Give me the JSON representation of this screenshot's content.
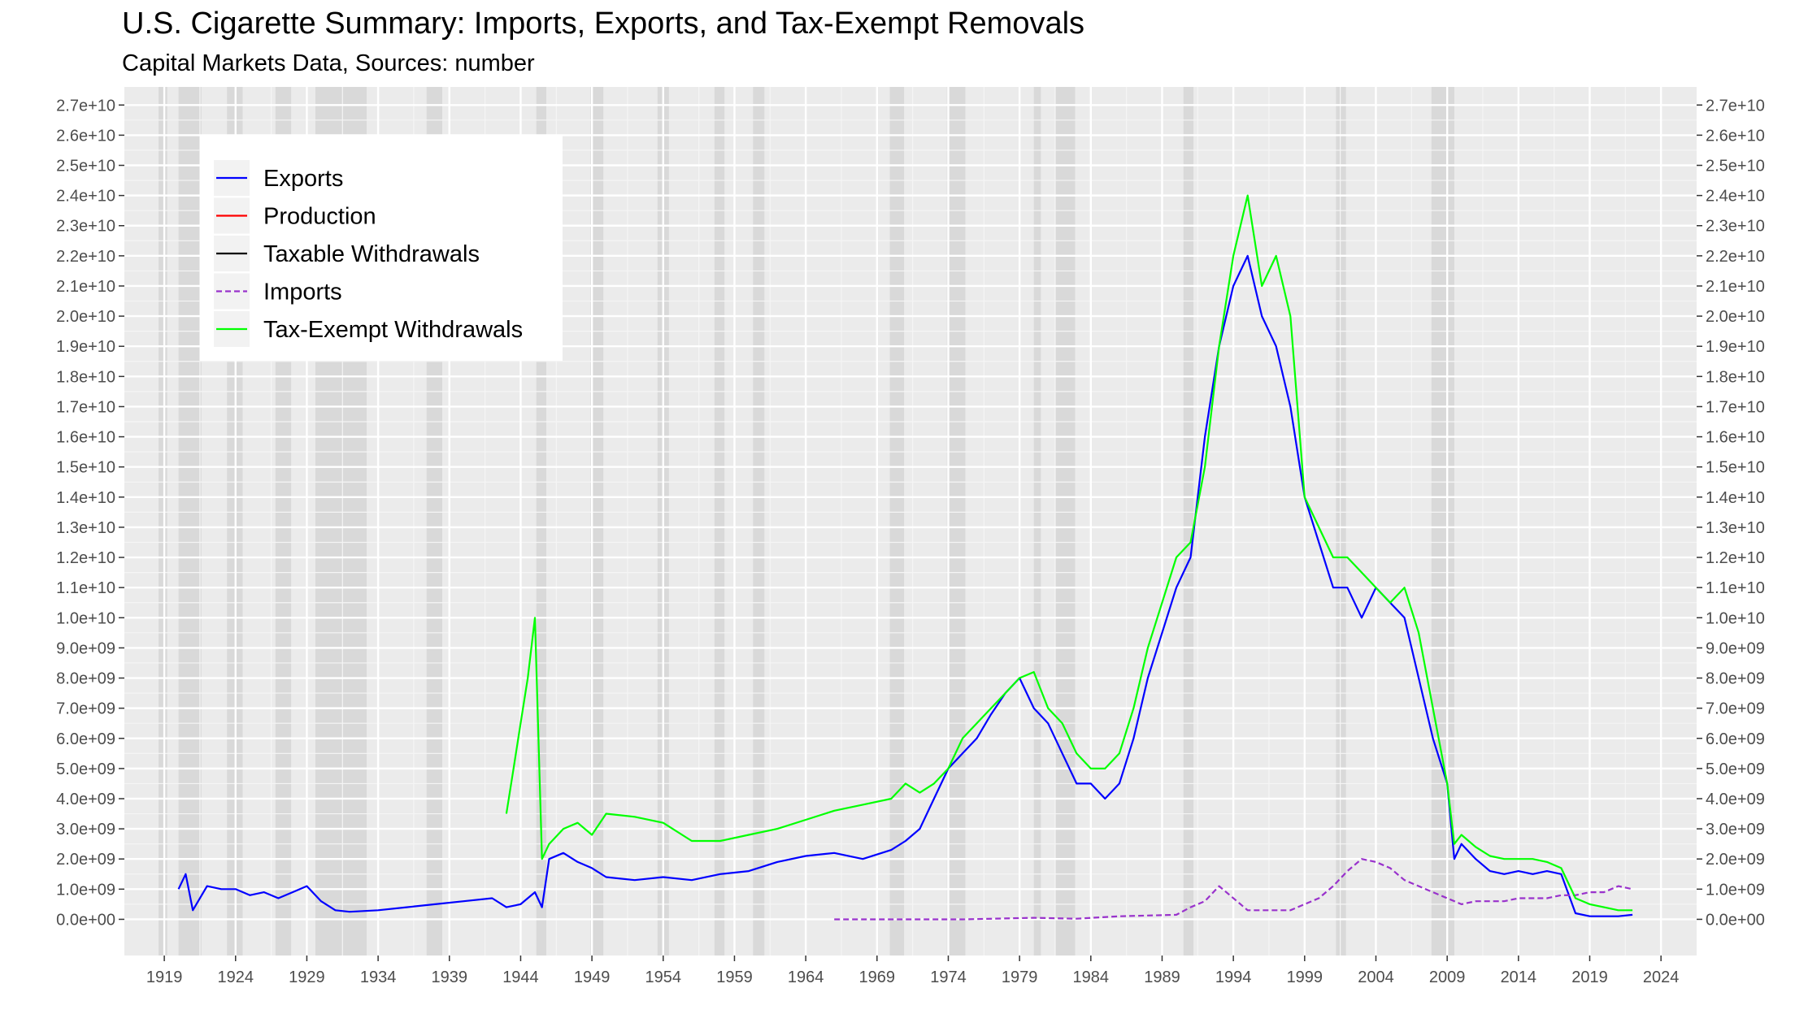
{
  "chart_data": {
    "type": "line",
    "title": "U.S. Cigarette Summary: Imports, Exports, and Tax-Exempt Removals",
    "subtitle": "Capital Markets Data, Sources: number",
    "xlabel": "",
    "ylabel": "",
    "xlim": [
      1916.2,
      2026.5
    ],
    "ylim": [
      -1200000000.0,
      27600000000.0
    ],
    "x_ticks": [
      1919,
      1924,
      1929,
      1934,
      1939,
      1944,
      1949,
      1954,
      1959,
      1964,
      1969,
      1974,
      1979,
      1984,
      1989,
      1994,
      1999,
      2004,
      2009,
      2014,
      2019,
      2024
    ],
    "y_ticks": [
      0,
      1000000000.0,
      2000000000.0,
      3000000000.0,
      4000000000.0,
      5000000000.0,
      6000000000.0,
      7000000000.0,
      8000000000.0,
      9000000000.0,
      10000000000.0,
      11000000000.0,
      12000000000.0,
      13000000000.0,
      14000000000.0,
      15000000000.0,
      16000000000.0,
      17000000000.0,
      18000000000.0,
      19000000000.0,
      20000000000.0,
      21000000000.0,
      22000000000.0,
      23000000000.0,
      24000000000.0,
      25000000000.0,
      26000000000.0,
      27000000000.0
    ],
    "y_tick_labels": [
      "0.0e+00",
      "1.0e+09",
      "2.0e+09",
      "3.0e+09",
      "4.0e+09",
      "5.0e+09",
      "6.0e+09",
      "7.0e+09",
      "8.0e+09",
      "9.0e+09",
      "1.0e+10",
      "1.1e+10",
      "1.2e+10",
      "1.3e+10",
      "1.4e+10",
      "1.5e+10",
      "1.6e+10",
      "1.7e+10",
      "1.8e+10",
      "1.9e+10",
      "2.0e+10",
      "2.1e+10",
      "2.2e+10",
      "2.3e+10",
      "2.4e+10",
      "2.5e+10",
      "2.6e+10",
      "2.7e+10"
    ],
    "secondary_y_axis": true,
    "grid": true,
    "legend_position": "top-left",
    "recession_shading": [
      [
        1918.6,
        1919.2
      ],
      [
        1920.0,
        1921.6
      ],
      [
        1923.4,
        1924.5
      ],
      [
        1926.8,
        1927.9
      ],
      [
        1929.6,
        1933.2
      ],
      [
        1937.4,
        1938.5
      ],
      [
        1945.1,
        1945.8
      ],
      [
        1948.9,
        1949.8
      ],
      [
        1953.6,
        1954.4
      ],
      [
        1957.6,
        1958.3
      ],
      [
        1960.3,
        1961.1
      ],
      [
        1969.9,
        1970.9
      ],
      [
        1973.9,
        1975.2
      ],
      [
        1980.0,
        1980.5
      ],
      [
        1981.5,
        1982.9
      ],
      [
        1990.5,
        1991.2
      ],
      [
        2001.2,
        2001.9
      ],
      [
        2007.9,
        2009.5
      ]
    ],
    "series": [
      {
        "name": "Exports",
        "color": "#0000ff",
        "dash": "solid",
        "x": [
          1920.0,
          1920.5,
          1921.0,
          1922.0,
          1923.0,
          1924.0,
          1925.0,
          1926.0,
          1927.0,
          1928.0,
          1929.0,
          1930.0,
          1931.0,
          1932.0,
          1934.0,
          1936.0,
          1938.0,
          1940.0,
          1942.0,
          1943.0,
          1944.0,
          1945.0,
          1945.5,
          1946.0,
          1947.0,
          1948.0,
          1949.0,
          1950.0,
          1952.0,
          1954.0,
          1956.0,
          1958.0,
          1960.0,
          1962.0,
          1964.0,
          1966.0,
          1968.0,
          1970.0,
          1971.0,
          1972.0,
          1973.0,
          1974.0,
          1975.0,
          1976.0,
          1977.0,
          1978.0,
          1979.0,
          1980.0,
          1981.0,
          1982.0,
          1983.0,
          1984.0,
          1985.0,
          1986.0,
          1987.0,
          1988.0,
          1989.0,
          1990.0,
          1991.0,
          1992.0,
          1993.0,
          1994.0,
          1995.0,
          1996.0,
          1997.0,
          1998.0,
          1999.0,
          2000.0,
          2001.0,
          2002.0,
          2003.0,
          2004.0,
          2005.0,
          2006.0,
          2007.0,
          2008.0,
          2009.0,
          2009.5,
          2010.0,
          2011.0,
          2012.0,
          2013.0,
          2014.0,
          2015.0,
          2016.0,
          2017.0,
          2018.0,
          2019.0,
          2020.0,
          2021.0,
          2022.0
        ],
        "y": [
          1000000000.0,
          1500000000.0,
          300000000.0,
          1100000000.0,
          1000000000.0,
          1000000000.0,
          800000000.0,
          900000000.0,
          700000000.0,
          900000000.0,
          1100000000.0,
          600000000.0,
          300000000.0,
          250000000.0,
          300000000.0,
          400000000.0,
          500000000.0,
          600000000.0,
          700000000.0,
          400000000.0,
          500000000.0,
          900000000.0,
          400000000.0,
          2000000000.0,
          2200000000.0,
          1900000000.0,
          1700000000.0,
          1400000000.0,
          1300000000.0,
          1400000000.0,
          1300000000.0,
          1500000000.0,
          1600000000.0,
          1900000000.0,
          2100000000.0,
          2200000000.0,
          2000000000.0,
          2300000000.0,
          2600000000.0,
          3000000000.0,
          4000000000.0,
          5000000000.0,
          5500000000.0,
          6000000000.0,
          6800000000.0,
          7500000000.0,
          8000000000.0,
          7000000000.0,
          6500000000.0,
          5500000000.0,
          4500000000.0,
          4500000000.0,
          4000000000.0,
          4500000000.0,
          6000000000.0,
          8000000000.0,
          9500000000.0,
          11000000000.0,
          12000000000.0,
          16000000000.0,
          19000000000.0,
          21000000000.0,
          22000000000.0,
          20000000000.0,
          19000000000.0,
          17000000000.0,
          14000000000.0,
          12500000000.0,
          11000000000.0,
          11000000000.0,
          10000000000.0,
          11000000000.0,
          10500000000.0,
          10000000000.0,
          8000000000.0,
          6000000000.0,
          4500000000.0,
          2000000000.0,
          2500000000.0,
          2000000000.0,
          1600000000.0,
          1500000000.0,
          1600000000.0,
          1500000000.0,
          1600000000.0,
          1500000000.0,
          200000000.0,
          100000000.0,
          100000000.0,
          100000000.0,
          150000000.0
        ]
      },
      {
        "name": "Production",
        "color": "#ff0000",
        "dash": "solid",
        "x": [],
        "y": []
      },
      {
        "name": "Taxable Withdrawals",
        "color": "#000000",
        "dash": "solid",
        "x": [],
        "y": []
      },
      {
        "name": "Imports",
        "color": "#9932cc",
        "dash": "dashed",
        "x": [
          1966.0,
          1970.0,
          1975.0,
          1980.0,
          1983.0,
          1986.0,
          1990.0,
          1991.0,
          1992.0,
          1993.0,
          1995.0,
          1998.0,
          2000.0,
          2001.0,
          2002.0,
          2003.0,
          2004.0,
          2005.0,
          2006.0,
          2007.0,
          2008.0,
          2009.0,
          2010.0,
          2011.0,
          2012.0,
          2013.0,
          2014.0,
          2015.0,
          2016.0,
          2017.0,
          2018.0,
          2019.0,
          2020.0,
          2021.0,
          2022.0
        ],
        "y": [
          0.0,
          0.0,
          0.0,
          50000000.0,
          20000000.0,
          100000000.0,
          150000000.0,
          400000000.0,
          600000000.0,
          1100000000.0,
          300000000.0,
          300000000.0,
          700000000.0,
          1100000000.0,
          1600000000.0,
          2000000000.0,
          1900000000.0,
          1700000000.0,
          1300000000.0,
          1100000000.0,
          900000000.0,
          700000000.0,
          500000000.0,
          600000000.0,
          600000000.0,
          600000000.0,
          700000000.0,
          700000000.0,
          700000000.0,
          800000000.0,
          800000000.0,
          900000000.0,
          900000000.0,
          1100000000.0,
          1000000000.0
        ]
      },
      {
        "name": "Tax-Exempt Withdrawals",
        "color": "#00ff00",
        "dash": "solid",
        "x": [
          1943.0,
          1943.5,
          1944.0,
          1944.5,
          1945.0,
          1945.5,
          1946.0,
          1947.0,
          1948.0,
          1949.0,
          1950.0,
          1952.0,
          1954.0,
          1956.0,
          1958.0,
          1960.0,
          1962.0,
          1964.0,
          1966.0,
          1968.0,
          1970.0,
          1971.0,
          1972.0,
          1973.0,
          1974.0,
          1975.0,
          1976.0,
          1977.0,
          1978.0,
          1979.0,
          1980.0,
          1981.0,
          1982.0,
          1983.0,
          1984.0,
          1985.0,
          1986.0,
          1987.0,
          1988.0,
          1989.0,
          1990.0,
          1991.0,
          1992.0,
          1993.0,
          1994.0,
          1995.0,
          1996.0,
          1997.0,
          1998.0,
          1999.0,
          2000.0,
          2001.0,
          2002.0,
          2003.0,
          2004.0,
          2005.0,
          2006.0,
          2007.0,
          2008.0,
          2009.0,
          2009.5,
          2010.0,
          2011.0,
          2012.0,
          2013.0,
          2014.0,
          2015.0,
          2016.0,
          2017.0,
          2018.0,
          2019.0,
          2020.0,
          2021.0,
          2022.0
        ],
        "y": [
          3500000000.0,
          5000000000.0,
          6500000000.0,
          8000000000.0,
          10000000000.0,
          2000000000.0,
          2500000000.0,
          3000000000.0,
          3200000000.0,
          2800000000.0,
          3500000000.0,
          3400000000.0,
          3200000000.0,
          2600000000.0,
          2600000000.0,
          2800000000.0,
          3000000000.0,
          3300000000.0,
          3600000000.0,
          3800000000.0,
          4000000000.0,
          4500000000.0,
          4200000000.0,
          4500000000.0,
          5000000000.0,
          6000000000.0,
          6500000000.0,
          7000000000.0,
          7500000000.0,
          8000000000.0,
          8200000000.0,
          7000000000.0,
          6500000000.0,
          5500000000.0,
          5000000000.0,
          5000000000.0,
          5500000000.0,
          7000000000.0,
          9000000000.0,
          10500000000.0,
          12000000000.0,
          12500000000.0,
          15000000000.0,
          19000000000.0,
          22000000000.0,
          24000000000.0,
          21000000000.0,
          22000000000.0,
          20000000000.0,
          14000000000.0,
          13000000000.0,
          12000000000.0,
          12000000000.0,
          11500000000.0,
          11000000000.0,
          10500000000.0,
          11000000000.0,
          9500000000.0,
          7000000000.0,
          4500000000.0,
          2500000000.0,
          2800000000.0,
          2400000000.0,
          2100000000.0,
          2000000000.0,
          2000000000.0,
          2000000000.0,
          1900000000.0,
          1700000000.0,
          700000000.0,
          500000000.0,
          400000000.0,
          300000000.0,
          300000000.0
        ]
      }
    ]
  }
}
